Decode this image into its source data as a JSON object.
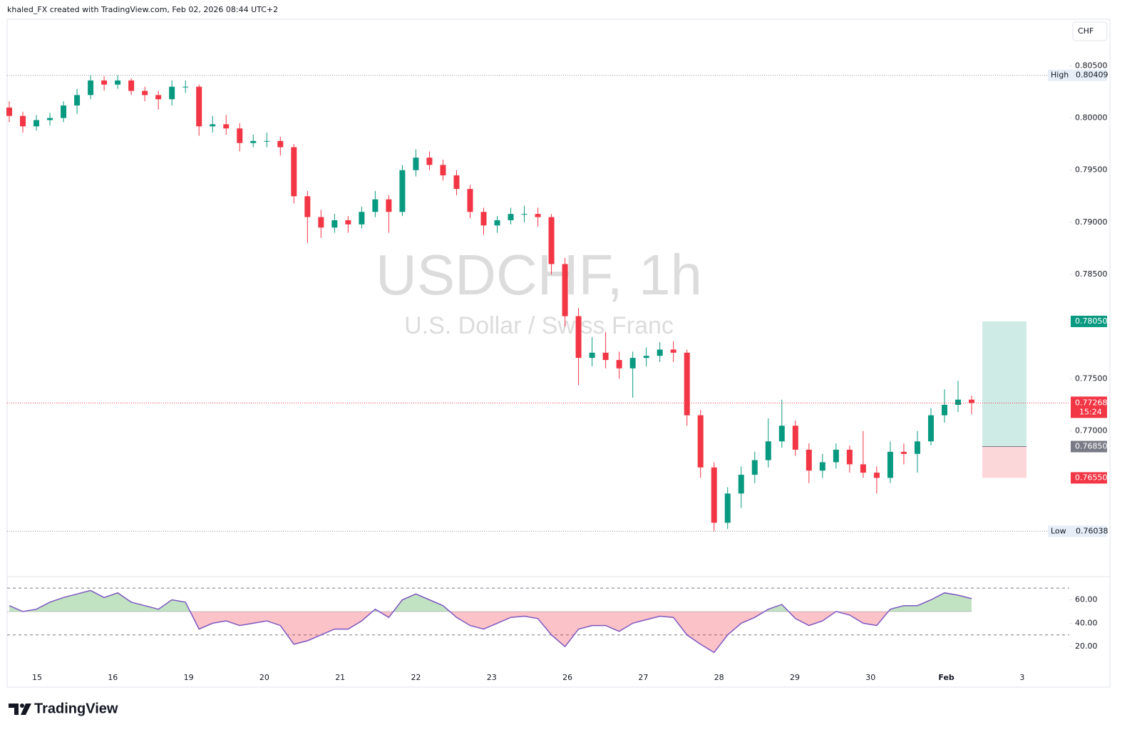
{
  "header": "khaled_FX created with TradingView.com, Feb 02, 2026 08:44 UTC+2",
  "footer_logo": "TradingView",
  "chart_data": {
    "type": "candlestick",
    "title": "USDCHF, 1h",
    "subtitle": "U.S. Dollar / Swiss Franc",
    "currency": "CHF",
    "up_color": "#089981",
    "down_color": "#f23645",
    "categories": [
      "15",
      "16",
      "19",
      "20",
      "21",
      "22",
      "23",
      "26",
      "27",
      "28",
      "29",
      "30",
      "Feb",
      "3"
    ],
    "candles": [
      [
        0.801,
        0.8016,
        0.7996,
        0.8002
      ],
      [
        0.8002,
        0.8006,
        0.7986,
        0.7992
      ],
      [
        0.7992,
        0.8003,
        0.7988,
        0.7998
      ],
      [
        0.7998,
        0.8005,
        0.7993,
        0.8
      ],
      [
        0.8,
        0.8016,
        0.7996,
        0.8012
      ],
      [
        0.8012,
        0.8028,
        0.8004,
        0.8022
      ],
      [
        0.8022,
        0.80409,
        0.8018,
        0.8036
      ],
      [
        0.8036,
        0.804,
        0.8026,
        0.8032
      ],
      [
        0.8032,
        0.8041,
        0.8028,
        0.8036
      ],
      [
        0.8036,
        0.8038,
        0.8022,
        0.8026
      ],
      [
        0.8026,
        0.803,
        0.8016,
        0.8022
      ],
      [
        0.8022,
        0.8026,
        0.8008,
        0.8018
      ],
      [
        0.8018,
        0.8036,
        0.8012,
        0.803
      ],
      [
        0.803,
        0.8036,
        0.8024,
        0.803
      ],
      [
        0.803,
        0.8032,
        0.7983,
        0.7992
      ],
      [
        0.7992,
        0.8002,
        0.7986,
        0.7994
      ],
      [
        0.7994,
        0.8003,
        0.7984,
        0.799
      ],
      [
        0.799,
        0.7995,
        0.7968,
        0.7976
      ],
      [
        0.7976,
        0.7984,
        0.7972,
        0.7978
      ],
      [
        0.7978,
        0.7986,
        0.7972,
        0.7978
      ],
      [
        0.7978,
        0.7982,
        0.7964,
        0.7972
      ],
      [
        0.7972,
        0.7975,
        0.7918,
        0.7925
      ],
      [
        0.7925,
        0.793,
        0.788,
        0.7905
      ],
      [
        0.7905,
        0.7912,
        0.7885,
        0.7895
      ],
      [
        0.7895,
        0.7908,
        0.789,
        0.7902
      ],
      [
        0.7902,
        0.7906,
        0.789,
        0.7898
      ],
      [
        0.7898,
        0.7915,
        0.7894,
        0.791
      ],
      [
        0.791,
        0.793,
        0.7905,
        0.7922
      ],
      [
        0.7922,
        0.7926,
        0.789,
        0.791
      ],
      [
        0.791,
        0.7955,
        0.7906,
        0.795
      ],
      [
        0.795,
        0.797,
        0.7944,
        0.7962
      ],
      [
        0.7962,
        0.7968,
        0.795,
        0.7955
      ],
      [
        0.7955,
        0.796,
        0.794,
        0.7945
      ],
      [
        0.7945,
        0.795,
        0.7926,
        0.7932
      ],
      [
        0.7932,
        0.7936,
        0.7904,
        0.791
      ],
      [
        0.791,
        0.7914,
        0.7888,
        0.7897
      ],
      [
        0.7897,
        0.7906,
        0.789,
        0.7902
      ],
      [
        0.7902,
        0.7914,
        0.7898,
        0.7908
      ],
      [
        0.7908,
        0.7916,
        0.79,
        0.7908
      ],
      [
        0.7908,
        0.7914,
        0.7896,
        0.7905
      ],
      [
        0.7905,
        0.7908,
        0.785,
        0.786
      ],
      [
        0.786,
        0.7866,
        0.78,
        0.781
      ],
      [
        0.781,
        0.7818,
        0.7744,
        0.777
      ],
      [
        0.777,
        0.779,
        0.7762,
        0.7775
      ],
      [
        0.7775,
        0.7795,
        0.776,
        0.7768
      ],
      [
        0.7768,
        0.7776,
        0.775,
        0.776
      ],
      [
        0.776,
        0.7776,
        0.7732,
        0.777
      ],
      [
        0.777,
        0.778,
        0.7762,
        0.7772
      ],
      [
        0.7772,
        0.7785,
        0.7766,
        0.7778
      ],
      [
        0.7778,
        0.7786,
        0.7766,
        0.7775
      ],
      [
        0.7775,
        0.7778,
        0.7705,
        0.7715
      ],
      [
        0.7715,
        0.772,
        0.7655,
        0.7665
      ],
      [
        0.7665,
        0.767,
        0.76038,
        0.7612
      ],
      [
        0.7612,
        0.7646,
        0.7606,
        0.764
      ],
      [
        0.764,
        0.7666,
        0.7626,
        0.7658
      ],
      [
        0.7658,
        0.768,
        0.765,
        0.7672
      ],
      [
        0.7672,
        0.7712,
        0.7665,
        0.769
      ],
      [
        0.769,
        0.773,
        0.7684,
        0.7705
      ],
      [
        0.7705,
        0.771,
        0.7676,
        0.7682
      ],
      [
        0.7682,
        0.7688,
        0.765,
        0.7662
      ],
      [
        0.7662,
        0.7678,
        0.7655,
        0.767
      ],
      [
        0.767,
        0.7688,
        0.7664,
        0.7682
      ],
      [
        0.7682,
        0.7686,
        0.766,
        0.7668
      ],
      [
        0.7668,
        0.77,
        0.7655,
        0.766
      ],
      [
        0.766,
        0.7666,
        0.764,
        0.7655
      ],
      [
        0.7655,
        0.769,
        0.765,
        0.768
      ],
      [
        0.768,
        0.7688,
        0.7668,
        0.7678
      ],
      [
        0.7678,
        0.77,
        0.766,
        0.769
      ],
      [
        0.769,
        0.7722,
        0.7686,
        0.7715
      ],
      [
        0.7715,
        0.774,
        0.7708,
        0.7725
      ],
      [
        0.7725,
        0.7748,
        0.7718,
        0.773
      ],
      [
        0.773,
        0.7734,
        0.7716,
        0.77268
      ]
    ],
    "ylim": [
      0.7561,
      0.8094
    ],
    "yticks": [
      {
        "value": 0.805,
        "label": "0.80500"
      },
      {
        "value": 0.8,
        "label": "0.80000"
      },
      {
        "value": 0.795,
        "label": "0.79500"
      },
      {
        "value": 0.79,
        "label": "0.79000"
      },
      {
        "value": 0.785,
        "label": "0.78500"
      },
      {
        "value": 0.775,
        "label": "0.77500"
      },
      {
        "value": 0.77,
        "label": "0.77000"
      }
    ],
    "levels": [
      {
        "name": "High",
        "value": 0.80409
      },
      {
        "name": "Low",
        "value": 0.76038
      }
    ],
    "current_price": {
      "value": 0.77268,
      "label": "0.77268",
      "countdown": "15:24"
    },
    "position": {
      "target": {
        "value": 0.7805,
        "label": "0.78050"
      },
      "entry": {
        "value": 0.7685,
        "label": "0.76850"
      },
      "stop": {
        "value": 0.7655,
        "label": "0.76550"
      }
    },
    "rsi": {
      "color": "#7e57c2",
      "values": [
        55,
        50,
        52,
        58,
        62,
        65,
        68,
        62,
        66,
        58,
        55,
        52,
        60,
        58,
        35,
        40,
        42,
        38,
        40,
        42,
        38,
        22,
        25,
        30,
        35,
        35,
        42,
        52,
        45,
        60,
        65,
        60,
        55,
        45,
        38,
        35,
        40,
        45,
        46,
        44,
        30,
        20,
        35,
        38,
        38,
        33,
        40,
        43,
        46,
        45,
        30,
        22,
        15,
        30,
        40,
        45,
        52,
        56,
        44,
        38,
        42,
        50,
        47,
        40,
        38,
        52,
        55,
        55,
        60,
        66,
        64,
        61
      ],
      "ylim": [
        0,
        78
      ],
      "yticks": [
        {
          "value": 60,
          "label": "60.00"
        },
        {
          "value": 40,
          "label": "40.00"
        },
        {
          "value": 20,
          "label": "20.00"
        }
      ],
      "levels": [
        70,
        30
      ],
      "midline": 50
    }
  }
}
